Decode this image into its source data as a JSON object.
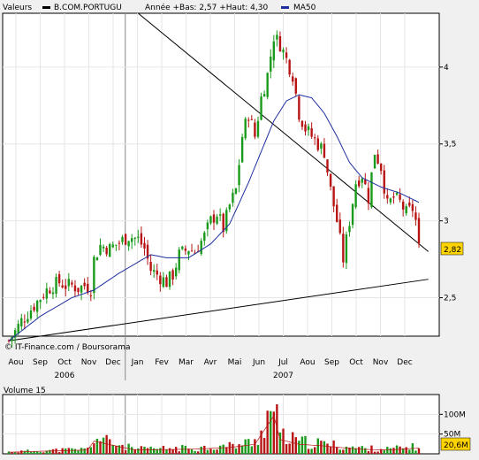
{
  "chart_data": [
    {
      "type": "candlestick",
      "legend": {
        "field_label": "Valeurs",
        "symbol": "B.COM.PORTUGU",
        "stats": "Année +Bas: 2,57 +Haut: 4,30",
        "ma_label": "MA50"
      },
      "colors": {
        "up": "#1a9a1a",
        "down": "#b81414",
        "ma": "#1f2f9f",
        "trend": "#000000",
        "last_price_box": "#ffd400"
      },
      "credit": "© IT-Finance.com / Boursorama",
      "months": [
        "Aou",
        "Sep",
        "Oct",
        "Nov",
        "Dec",
        "Jan",
        "Fev",
        "Mar",
        "Avr",
        "Mai",
        "Jun",
        "Jul",
        "Aou",
        "Sep",
        "Oct",
        "Nov",
        "Dec"
      ],
      "years": [
        {
          "label": "2006",
          "month_index": 2
        },
        {
          "label": "2007",
          "month_index": 11
        }
      ],
      "yticks": [
        2.5,
        3,
        3.5,
        4
      ],
      "ytick_labels": [
        "2,5",
        "3",
        "3,5",
        "4"
      ],
      "ylim": [
        2.25,
        4.35
      ],
      "last_price": "2,82",
      "price_anchors": [
        [
          0,
          2.22
        ],
        [
          2,
          2.28
        ],
        [
          4,
          2.35
        ],
        [
          6,
          2.4
        ],
        [
          8,
          2.45
        ],
        [
          10,
          2.5
        ],
        [
          12,
          2.55
        ],
        [
          14,
          2.58
        ],
        [
          16,
          2.6
        ],
        [
          18,
          2.58
        ],
        [
          20,
          2.58
        ],
        [
          22,
          2.56
        ],
        [
          24,
          2.58
        ],
        [
          26,
          2.56
        ],
        [
          27,
          2.75
        ],
        [
          29,
          2.84
        ],
        [
          32,
          2.82
        ],
        [
          35,
          2.86
        ],
        [
          38,
          2.9
        ],
        [
          41,
          2.88
        ],
        [
          43,
          2.82
        ],
        [
          45,
          2.68
        ],
        [
          47,
          2.65
        ],
        [
          50,
          2.6
        ],
        [
          52,
          2.65
        ],
        [
          54,
          2.78
        ],
        [
          57,
          2.82
        ],
        [
          59,
          2.8
        ],
        [
          62,
          2.9
        ],
        [
          64,
          3.0
        ],
        [
          66,
          3.05
        ],
        [
          68,
          2.95
        ],
        [
          70,
          3.1
        ],
        [
          72,
          3.2
        ],
        [
          74,
          3.55
        ],
        [
          76,
          3.7
        ],
        [
          78,
          3.55
        ],
        [
          80,
          3.8
        ],
        [
          82,
          3.95
        ],
        [
          84,
          4.2
        ],
        [
          86,
          4.15
        ],
        [
          88,
          4.05
        ],
        [
          90,
          3.95
        ],
        [
          92,
          3.7
        ],
        [
          94,
          3.6
        ],
        [
          96,
          3.55
        ],
        [
          98,
          3.5
        ],
        [
          100,
          3.45
        ],
        [
          102,
          3.2
        ],
        [
          104,
          3.0
        ],
        [
          106,
          2.75
        ],
        [
          108,
          3.0
        ],
        [
          110,
          3.25
        ],
        [
          112,
          3.3
        ],
        [
          114,
          3.15
        ],
        [
          116,
          3.45
        ],
        [
          118,
          3.35
        ],
        [
          120,
          3.1
        ],
        [
          122,
          3.15
        ],
        [
          124,
          3.12
        ],
        [
          126,
          3.05
        ],
        [
          128,
          3.08
        ],
        [
          129,
          3.0
        ],
        [
          130,
          2.82
        ]
      ],
      "ma50_anchors": [
        [
          0,
          2.22
        ],
        [
          10,
          2.38
        ],
        [
          20,
          2.5
        ],
        [
          27,
          2.55
        ],
        [
          35,
          2.66
        ],
        [
          45,
          2.78
        ],
        [
          50,
          2.76
        ],
        [
          57,
          2.76
        ],
        [
          64,
          2.85
        ],
        [
          70,
          2.98
        ],
        [
          76,
          3.25
        ],
        [
          80,
          3.45
        ],
        [
          84,
          3.65
        ],
        [
          88,
          3.78
        ],
        [
          92,
          3.82
        ],
        [
          96,
          3.8
        ],
        [
          100,
          3.7
        ],
        [
          104,
          3.55
        ],
        [
          108,
          3.38
        ],
        [
          112,
          3.28
        ],
        [
          118,
          3.22
        ],
        [
          124,
          3.18
        ],
        [
          130,
          3.12
        ]
      ],
      "trendlines": [
        {
          "from": [
            41,
            4.35
          ],
          "to": [
            133,
            2.8
          ]
        },
        {
          "from": [
            0,
            2.22
          ],
          "to": [
            133,
            2.62
          ]
        }
      ],
      "volume_anchors": [
        [
          0,
          5
        ],
        [
          10,
          8
        ],
        [
          25,
          12
        ],
        [
          27,
          40
        ],
        [
          40,
          12
        ],
        [
          60,
          15
        ],
        [
          70,
          20
        ],
        [
          78,
          30
        ],
        [
          84,
          120
        ],
        [
          86,
          45
        ],
        [
          92,
          30
        ],
        [
          100,
          25
        ],
        [
          110,
          15
        ],
        [
          120,
          12
        ],
        [
          130,
          18
        ]
      ]
    },
    {
      "type": "bar",
      "title": "Volume 15",
      "ytick_labels": [
        "50M",
        "100M"
      ],
      "yticks": [
        50,
        100
      ],
      "ylim": [
        0,
        150
      ],
      "last_volume": "20,6M"
    }
  ]
}
